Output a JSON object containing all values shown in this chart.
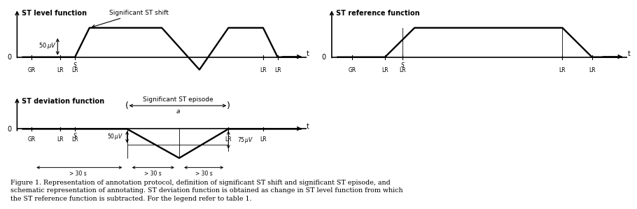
{
  "bg_color": "#ffffff",
  "line_color": "#000000",
  "fig_width": 8.99,
  "fig_height": 2.85,
  "caption": "Figure 1. Representation of annotation protocol, definition of significant ST shift and significant ST episode, and\nschematic representation of annotating. ST deviation function is obtained as change in ST level function from which\nthe ST reference function is subtracted. For the legend refer to table 1."
}
